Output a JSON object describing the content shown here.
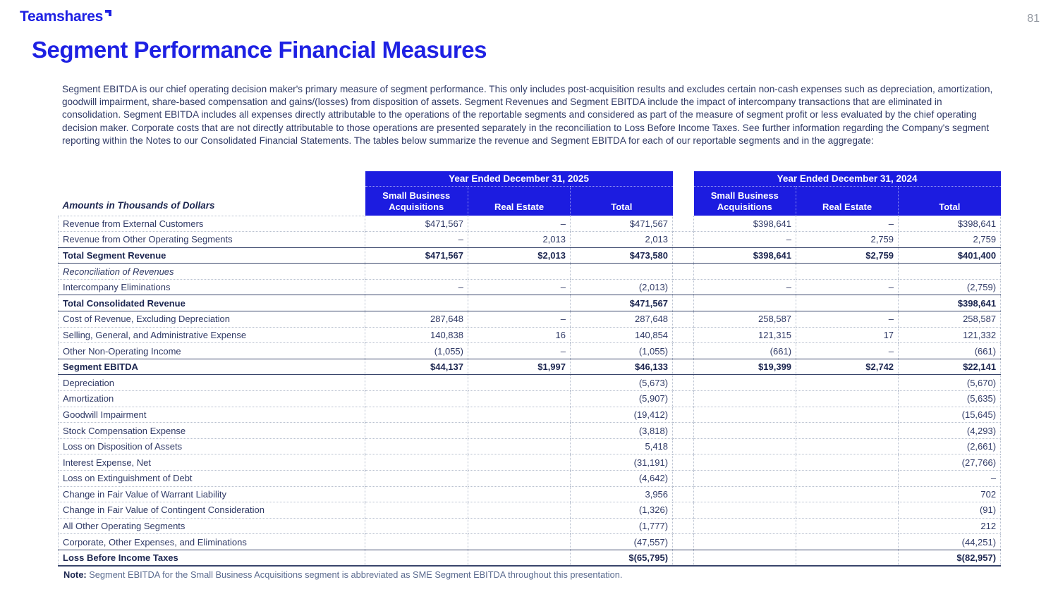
{
  "page": {
    "logo_text": "Teamshares",
    "page_number": "81",
    "title": "Segment Performance Financial Measures",
    "intro": "Segment EBITDA is our chief operating decision maker's primary measure of segment performance. This only includes post-acquisition results and excludes certain non-cash expenses such as depreciation, amortization, goodwill impairment, share-based compensation and gains/(losses) from disposition of assets. Segment Revenues and Segment EBITDA include the impact of intercompany transactions that are eliminated in consolidation. Segment EBITDA includes all expenses directly attributable to the operations of the reportable segments and considered as part of the measure of segment profit or less evaluated by the chief operating decision maker. Corporate costs that are not directly attributable to those operations are presented separately in the reconciliation to Loss Before Income Taxes. See further information regarding the Company's segment reporting within the Notes to our Consolidated Financial Statements. The tables below summarize the revenue and Segment EBITDA for each of our reportable segments and in the aggregate:",
    "note_label": "Note:",
    "note_text": "Segment EBITDA for the Small Business Acquisitions segment is abbreviated as SME Segment EBITDA throughout this presentation."
  },
  "colors": {
    "brand_blue": "#1e21e3",
    "header_bg": "#1c1ce0",
    "body_text": "#303a66",
    "total_text": "#1c2650"
  },
  "table": {
    "units_label": "Amounts in Thousands of Dollars",
    "groups": [
      {
        "title": "Year Ended December 31, 2025",
        "columns": [
          "Small Business Acquisitions",
          "Real Estate",
          "Total"
        ]
      },
      {
        "title": "Year Ended December 31, 2024",
        "columns": [
          "Small Business Acquisitions",
          "Real Estate",
          "Total"
        ]
      }
    ],
    "rows": [
      {
        "label": "Revenue from External Customers",
        "style": "normal",
        "values": [
          "$471,567",
          "–",
          "$471,567",
          "$398,641",
          "–",
          "$398,641"
        ]
      },
      {
        "label": "Revenue from Other Operating Segments",
        "style": "normal",
        "values": [
          "–",
          "2,013",
          "2,013",
          "–",
          "2,759",
          "2,759"
        ]
      },
      {
        "label": "Total Segment Revenue",
        "style": "total",
        "values": [
          "$471,567",
          "$2,013",
          "$473,580",
          "$398,641",
          "$2,759",
          "$401,400"
        ]
      },
      {
        "label": "Reconciliation of Revenues",
        "style": "italic",
        "values": [
          "",
          "",
          "",
          "",
          "",
          ""
        ]
      },
      {
        "label": "Intercompany Eliminations",
        "style": "normal",
        "values": [
          "–",
          "–",
          "(2,013)",
          "–",
          "–",
          "(2,759)"
        ]
      },
      {
        "label": "Total Consolidated Revenue",
        "style": "total",
        "values": [
          "",
          "",
          "$471,567",
          "",
          "",
          "$398,641"
        ]
      },
      {
        "label": "Cost of Revenue, Excluding Depreciation",
        "style": "normal",
        "values": [
          "287,648",
          "–",
          "287,648",
          "258,587",
          "–",
          "258,587"
        ]
      },
      {
        "label": "Selling, General, and Administrative Expense",
        "style": "normal",
        "values": [
          "140,838",
          "16",
          "140,854",
          "121,315",
          "17",
          "121,332"
        ]
      },
      {
        "label": "Other Non-Operating Income",
        "style": "normal",
        "values": [
          "(1,055)",
          "–",
          "(1,055)",
          "(661)",
          "–",
          "(661)"
        ]
      },
      {
        "label": "Segment EBITDA",
        "style": "total",
        "values": [
          "$44,137",
          "$1,997",
          "$46,133",
          "$19,399",
          "$2,742",
          "$22,141"
        ]
      },
      {
        "label": "Depreciation",
        "style": "normal",
        "values": [
          "",
          "",
          "(5,673)",
          "",
          "",
          "(5,670)"
        ]
      },
      {
        "label": "Amortization",
        "style": "normal",
        "values": [
          "",
          "",
          "(5,907)",
          "",
          "",
          "(5,635)"
        ]
      },
      {
        "label": "Goodwill Impairment",
        "style": "normal",
        "values": [
          "",
          "",
          "(19,412)",
          "",
          "",
          "(15,645)"
        ]
      },
      {
        "label": "Stock Compensation Expense",
        "style": "normal",
        "values": [
          "",
          "",
          "(3,818)",
          "",
          "",
          "(4,293)"
        ]
      },
      {
        "label": "Loss on Disposition of Assets",
        "style": "normal",
        "values": [
          "",
          "",
          "5,418",
          "",
          "",
          "(2,661)"
        ]
      },
      {
        "label": "Interest Expense, Net",
        "style": "normal",
        "values": [
          "",
          "",
          "(31,191)",
          "",
          "",
          "(27,766)"
        ]
      },
      {
        "label": "Loss on Extinguishment of Debt",
        "style": "normal",
        "values": [
          "",
          "",
          "(4,642)",
          "",
          "",
          "–"
        ]
      },
      {
        "label": "Change in Fair Value of Warrant Liability",
        "style": "normal",
        "values": [
          "",
          "",
          "3,956",
          "",
          "",
          "702"
        ]
      },
      {
        "label": "Change in Fair Value of Contingent Consideration",
        "style": "normal",
        "values": [
          "",
          "",
          "(1,326)",
          "",
          "",
          "(91)"
        ]
      },
      {
        "label": "All Other Operating Segments",
        "style": "normal",
        "values": [
          "",
          "",
          "(1,777)",
          "",
          "",
          "212"
        ]
      },
      {
        "label": "Corporate, Other Expenses, and Eliminations",
        "style": "normal",
        "values": [
          "",
          "",
          "(47,557)",
          "",
          "",
          "(44,251)"
        ]
      },
      {
        "label": "Loss Before Income Taxes",
        "style": "final",
        "values": [
          "",
          "",
          "$(65,795)",
          "",
          "",
          "$(82,957)"
        ]
      }
    ]
  }
}
